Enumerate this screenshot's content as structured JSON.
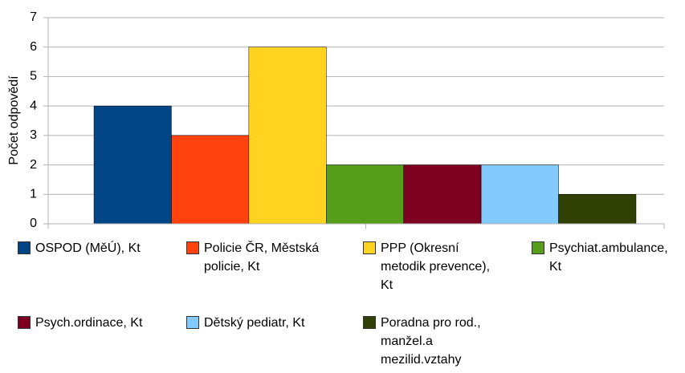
{
  "chart_data": {
    "type": "bar",
    "y_label": "Počet odpovědí",
    "categories": [
      null
    ],
    "series": [
      {
        "name": "OSPOD (MěÚ), Kt",
        "color": "#004586",
        "values": [
          4
        ]
      },
      {
        "name": "Policie ČR, Městská policie, Kt",
        "color": "#ff420e",
        "values": [
          3
        ]
      },
      {
        "name": "PPP (Okresní metodik prevence), Kt",
        "color": "#ffd320",
        "values": [
          6
        ]
      },
      {
        "name": "Psychiat.ambulance, Kt",
        "color": "#579d1c",
        "values": [
          2
        ]
      },
      {
        "name": "Psych.ordinace, Kt",
        "color": "#7e0021",
        "values": [
          2
        ]
      },
      {
        "name": "Dětský pediatr, Kt",
        "color": "#83caff",
        "values": [
          2
        ]
      },
      {
        "name": "Poradna pro rod., manžel.a mezilid.vztahy",
        "color": "#314004",
        "values": [
          1
        ]
      }
    ],
    "ylim": [
      0,
      7
    ],
    "yticks": [
      0,
      1,
      2,
      3,
      4,
      5,
      6,
      7
    ],
    "grid": true,
    "legend": "bottom"
  }
}
